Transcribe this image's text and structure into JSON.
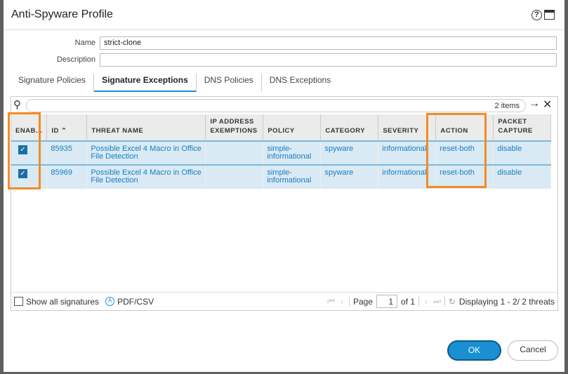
{
  "dialog": {
    "title": "Anti-Spyware Profile"
  },
  "form": {
    "name_label": "Name",
    "name_value": "strict-clone",
    "description_label": "Description",
    "description_value": ""
  },
  "tabs": [
    {
      "label": "Signature Policies"
    },
    {
      "label": "Signature Exceptions",
      "active": true
    },
    {
      "label": "DNS Policies"
    },
    {
      "label": "DNS Exceptions"
    }
  ],
  "search": {
    "count": "2 items"
  },
  "table": {
    "columns": [
      "ENAB...",
      "ID",
      "THREAT NAME",
      "IP ADDRESS EXEMPTIONS",
      "POLICY",
      "CATEGORY",
      "SEVERITY",
      "ACTION",
      "PACKET CAPTURE"
    ],
    "rows": [
      {
        "enabled": true,
        "id": "85935",
        "threat": "Possible Excel 4 Macro in Office File Detection",
        "ip": "",
        "policy": "simple-informational",
        "category": "spyware",
        "severity": "informational",
        "action": "reset-both",
        "capture": "disable"
      },
      {
        "enabled": true,
        "id": "85969",
        "threat": "Possible Excel 4 Macro in Office File Detection",
        "ip": "",
        "policy": "simple-informational",
        "category": "spyware",
        "severity": "informational",
        "action": "reset-both",
        "capture": "disable"
      }
    ]
  },
  "footer": {
    "show_all": "Show all signatures",
    "pdf": "PDF/CSV",
    "page_label": "Page",
    "page": "1",
    "of": "of 1",
    "displaying": "Displaying 1 - 2/ 2 threats"
  },
  "buttons": {
    "ok": "OK",
    "cancel": "Cancel"
  },
  "colors": {
    "accent": "#1a8fd1",
    "highlight": "#f58a23"
  }
}
